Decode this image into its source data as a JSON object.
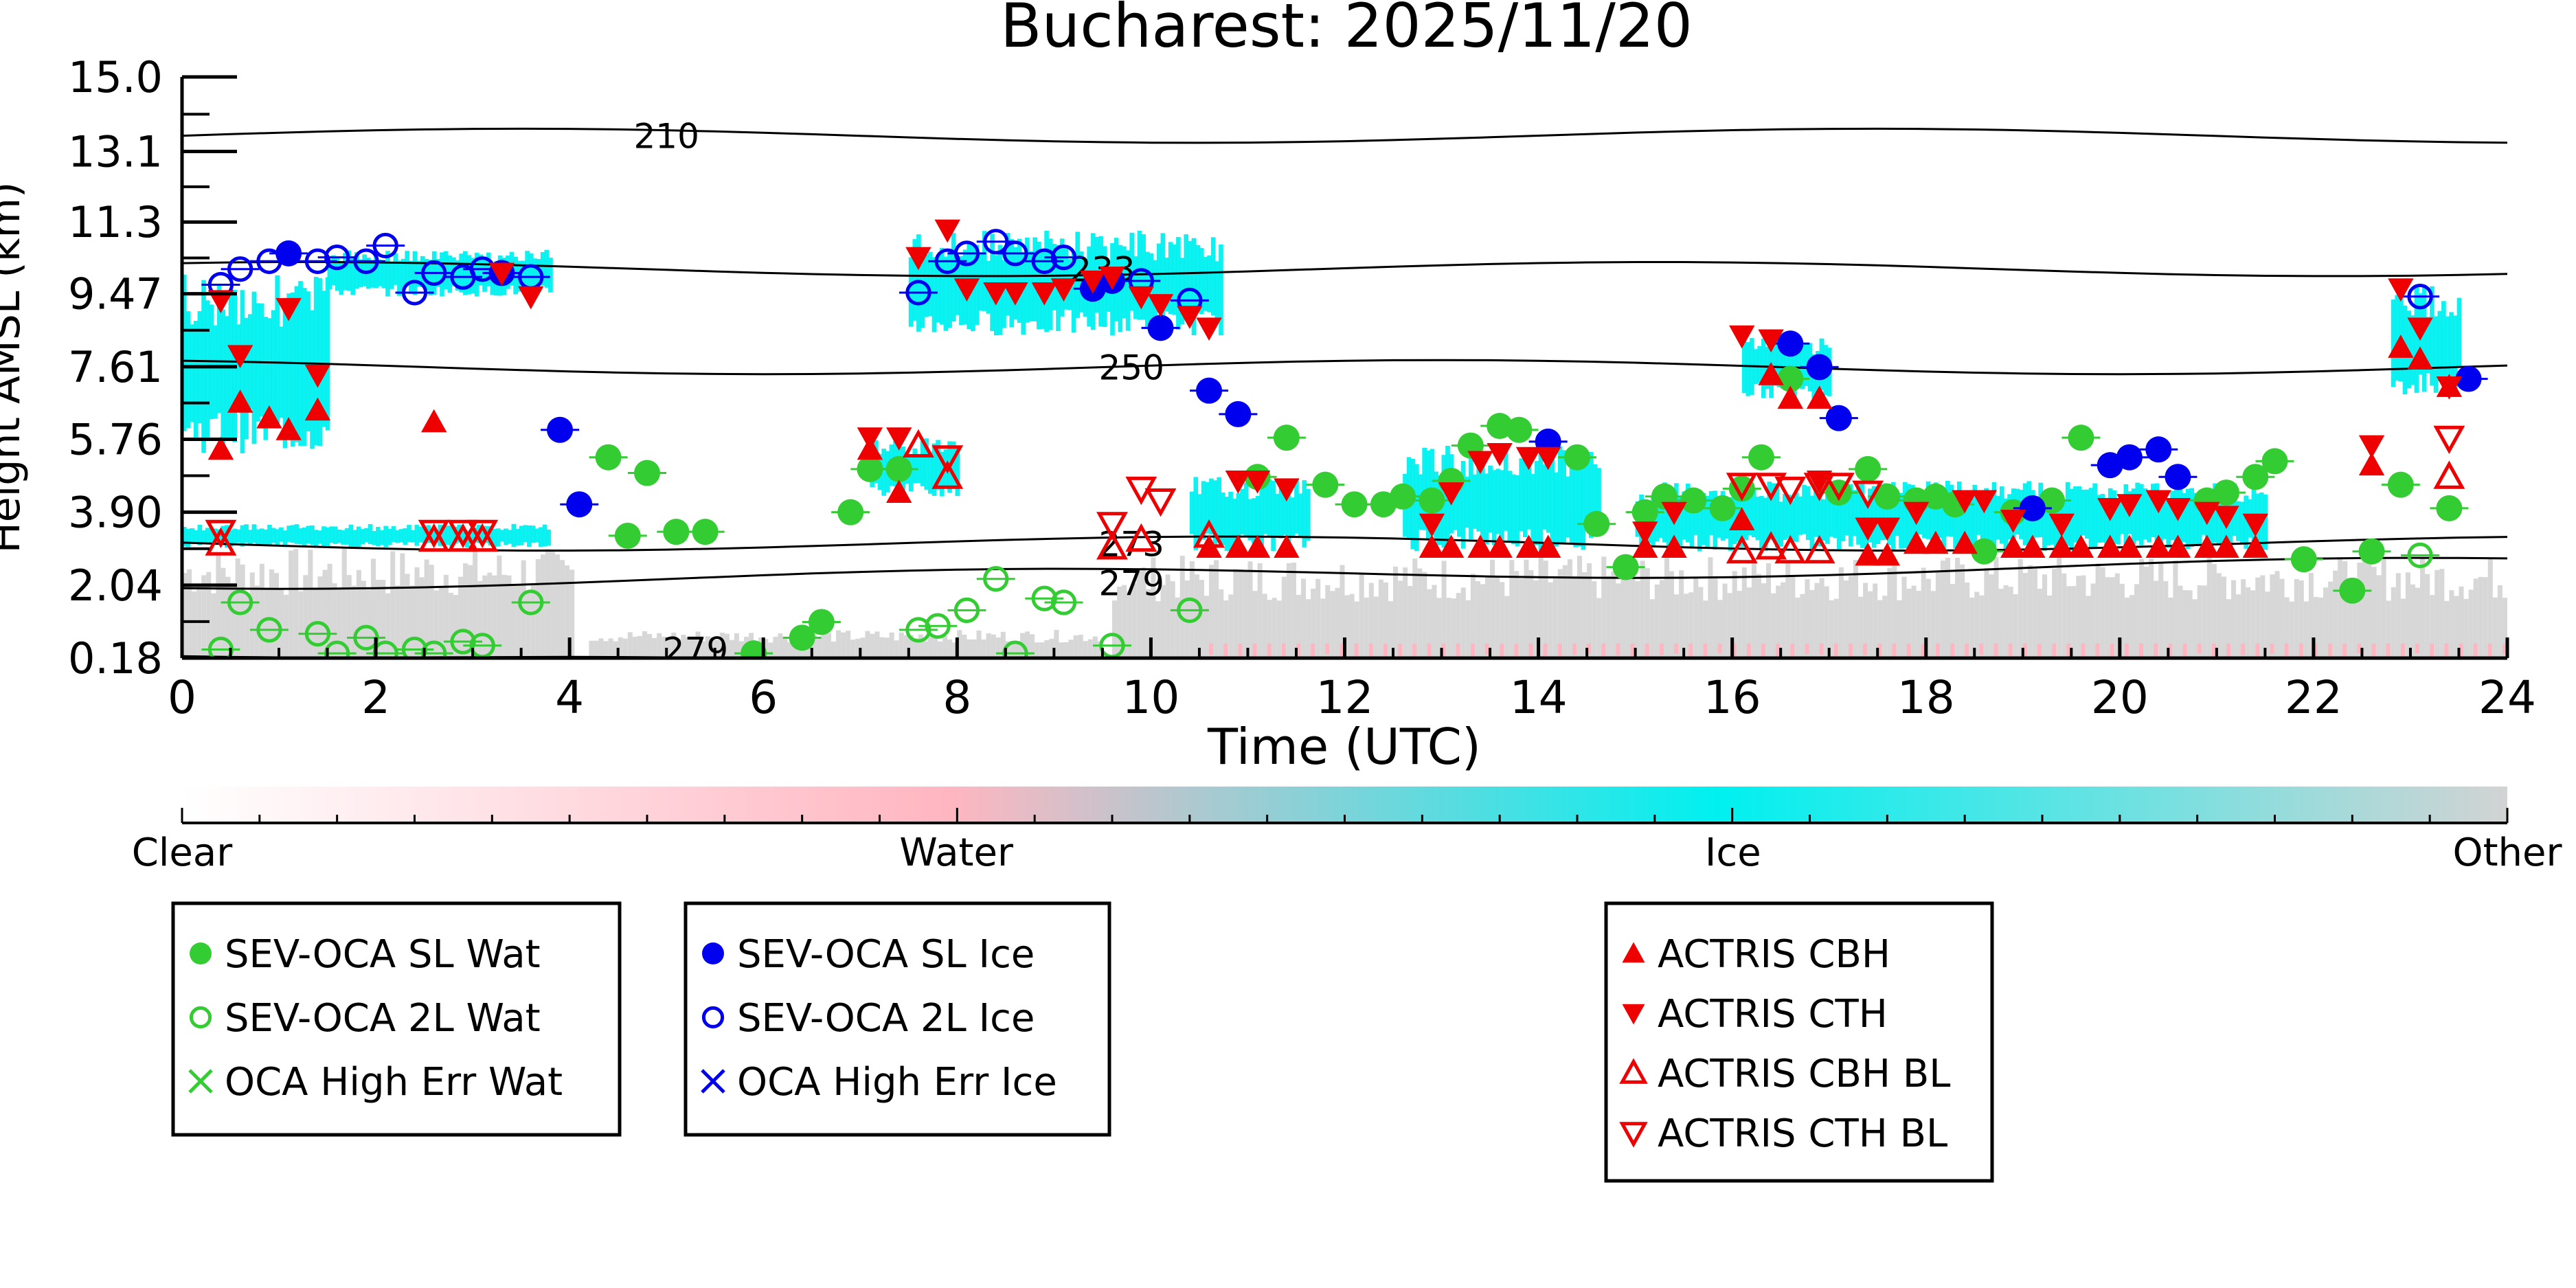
{
  "chart_data": {
    "type": "scatter",
    "title": "Bucharest: 2025/11/20",
    "xlabel": "Time (UTC)",
    "ylabel": "Height AMSL (km)",
    "xlim": [
      0,
      24
    ],
    "ylim": [
      0.18,
      15.0
    ],
    "x_ticks": [
      "0",
      "2",
      "4",
      "6",
      "8",
      "10",
      "12",
      "14",
      "16",
      "18",
      "20",
      "22",
      "24"
    ],
    "y_ticks": [
      "0.18",
      "2.04",
      "3.90",
      "5.76",
      "7.61",
      "9.47",
      "11.3",
      "13.1",
      "15.0"
    ],
    "grid": false,
    "colorbar": {
      "labels": [
        "Clear",
        "Water",
        "Ice",
        "Other"
      ],
      "colors": [
        "#ffffff",
        "#ffb6c1",
        "#00f0f0",
        "#d3d3d3"
      ]
    },
    "contours": [
      {
        "label": "210",
        "level_km": 13.5
      },
      {
        "label": "233",
        "level_km": 10.1
      },
      {
        "label": "250",
        "level_km": 7.6
      },
      {
        "label": "273",
        "level_km": 3.1
      },
      {
        "label": "279",
        "level_km": 2.1
      },
      {
        "label": "279",
        "level_km": 0.4
      }
    ],
    "legend_groups": [
      {
        "entries": [
          {
            "label": "SEV-OCA SL Wat",
            "marker": "filled-circle",
            "color": "#33cc33"
          },
          {
            "label": "SEV-OCA 2L Wat",
            "marker": "open-circle",
            "color": "#33cc33"
          },
          {
            "label": "OCA High Err Wat",
            "marker": "x",
            "color": "#33cc33"
          }
        ]
      },
      {
        "entries": [
          {
            "label": "SEV-OCA SL Ice",
            "marker": "filled-circle",
            "color": "#0000ee"
          },
          {
            "label": "SEV-OCA 2L Ice",
            "marker": "open-circle",
            "color": "#0000ee"
          },
          {
            "label": "OCA High Err Ice",
            "marker": "x",
            "color": "#0000ee"
          }
        ]
      },
      {
        "entries": [
          {
            "label": "ACTRIS CBH",
            "marker": "triangle-up",
            "color": "#ee0000"
          },
          {
            "label": "ACTRIS CTH",
            "marker": "triangle-down",
            "color": "#ee0000"
          },
          {
            "label": "ACTRIS CBH BL",
            "marker": "open-triangle-up",
            "color": "#ee0000"
          },
          {
            "label": "ACTRIS CTH BL",
            "marker": "open-triangle-down",
            "color": "#ee0000"
          }
        ]
      }
    ],
    "series": [
      {
        "name": "SEV-OCA SL Wat",
        "points": [
          [
            4.4,
            5.3
          ],
          [
            4.8,
            4.9
          ],
          [
            4.6,
            3.3
          ],
          [
            5.1,
            3.4
          ],
          [
            5.4,
            3.4
          ],
          [
            5.9,
            0.3
          ],
          [
            6.4,
            0.7
          ],
          [
            6.6,
            1.1
          ],
          [
            6.9,
            3.9
          ],
          [
            7.1,
            5.0
          ],
          [
            7.4,
            5.0
          ],
          [
            11.1,
            4.8
          ],
          [
            11.4,
            5.8
          ],
          [
            11.8,
            4.6
          ],
          [
            12.1,
            4.1
          ],
          [
            12.4,
            4.1
          ],
          [
            12.6,
            4.3
          ],
          [
            12.9,
            4.2
          ],
          [
            13.1,
            4.7
          ],
          [
            13.3,
            5.6
          ],
          [
            13.6,
            6.1
          ],
          [
            13.8,
            6.0
          ],
          [
            14.1,
            5.7
          ],
          [
            14.4,
            5.3
          ],
          [
            14.6,
            3.6
          ],
          [
            14.9,
            2.5
          ],
          [
            15.1,
            3.9
          ],
          [
            15.3,
            4.3
          ],
          [
            15.6,
            4.2
          ],
          [
            15.9,
            4.0
          ],
          [
            16.1,
            4.5
          ],
          [
            16.3,
            5.3
          ],
          [
            16.6,
            7.3
          ],
          [
            17.1,
            4.4
          ],
          [
            17.4,
            5.0
          ],
          [
            17.6,
            4.3
          ],
          [
            17.9,
            4.2
          ],
          [
            18.1,
            4.3
          ],
          [
            18.3,
            4.1
          ],
          [
            18.6,
            2.9
          ],
          [
            18.9,
            3.9
          ],
          [
            19.3,
            4.2
          ],
          [
            19.6,
            5.8
          ],
          [
            20.9,
            4.2
          ],
          [
            21.1,
            4.4
          ],
          [
            21.4,
            4.8
          ],
          [
            21.6,
            5.2
          ],
          [
            21.9,
            2.7
          ],
          [
            22.4,
            1.9
          ],
          [
            22.6,
            2.9
          ],
          [
            22.9,
            4.6
          ],
          [
            23.4,
            4.0
          ]
        ]
      },
      {
        "name": "SEV-OCA 2L Wat",
        "points": [
          [
            0.4,
            0.4
          ],
          [
            0.6,
            1.6
          ],
          [
            0.9,
            0.9
          ],
          [
            1.4,
            0.8
          ],
          [
            1.6,
            0.3
          ],
          [
            1.9,
            0.7
          ],
          [
            2.1,
            0.3
          ],
          [
            2.4,
            0.4
          ],
          [
            2.6,
            0.3
          ],
          [
            2.9,
            0.6
          ],
          [
            3.1,
            0.5
          ],
          [
            3.6,
            1.6
          ],
          [
            7.6,
            0.9
          ],
          [
            7.8,
            1.0
          ],
          [
            8.1,
            1.4
          ],
          [
            8.4,
            2.2
          ],
          [
            8.6,
            0.3
          ],
          [
            8.9,
            1.7
          ],
          [
            9.1,
            1.6
          ],
          [
            9.6,
            0.5
          ],
          [
            10.4,
            1.4
          ],
          [
            23.1,
            2.8
          ]
        ]
      },
      {
        "name": "SEV-OCA SL Ice",
        "points": [
          [
            1.1,
            10.5
          ],
          [
            3.3,
            10.0
          ],
          [
            3.9,
            6.0
          ],
          [
            4.1,
            4.1
          ],
          [
            9.4,
            9.6
          ],
          [
            9.6,
            9.8
          ],
          [
            10.1,
            8.6
          ],
          [
            10.6,
            7.0
          ],
          [
            10.9,
            6.4
          ],
          [
            14.1,
            5.7
          ],
          [
            16.6,
            8.2
          ],
          [
            16.9,
            7.6
          ],
          [
            17.1,
            6.3
          ],
          [
            19.1,
            4.0
          ],
          [
            19.9,
            5.1
          ],
          [
            20.1,
            5.3
          ],
          [
            20.4,
            5.5
          ],
          [
            20.6,
            4.8
          ],
          [
            23.6,
            7.3
          ]
        ]
      },
      {
        "name": "SEV-OCA 2L Ice",
        "points": [
          [
            0.4,
            9.7
          ],
          [
            0.6,
            10.1
          ],
          [
            0.9,
            10.3
          ],
          [
            1.4,
            10.3
          ],
          [
            1.6,
            10.4
          ],
          [
            1.9,
            10.3
          ],
          [
            2.1,
            10.7
          ],
          [
            2.4,
            9.5
          ],
          [
            2.6,
            10.0
          ],
          [
            2.9,
            9.9
          ],
          [
            3.1,
            10.1
          ],
          [
            3.6,
            9.9
          ],
          [
            7.6,
            9.5
          ],
          [
            7.9,
            10.3
          ],
          [
            8.1,
            10.5
          ],
          [
            8.4,
            10.8
          ],
          [
            8.6,
            10.5
          ],
          [
            8.9,
            10.3
          ],
          [
            9.1,
            10.4
          ],
          [
            9.9,
            9.8
          ],
          [
            10.4,
            9.3
          ],
          [
            23.1,
            9.4
          ]
        ]
      },
      {
        "name": "ACTRIS CBH",
        "points": [
          [
            0.4,
            5.5
          ],
          [
            0.6,
            6.7
          ],
          [
            0.9,
            6.3
          ],
          [
            1.1,
            6.0
          ],
          [
            1.4,
            6.5
          ],
          [
            2.6,
            6.2
          ],
          [
            7.1,
            5.5
          ],
          [
            7.4,
            4.4
          ],
          [
            10.6,
            3.0
          ],
          [
            10.9,
            3.0
          ],
          [
            11.1,
            3.0
          ],
          [
            11.4,
            3.0
          ],
          [
            12.9,
            3.0
          ],
          [
            13.1,
            3.0
          ],
          [
            13.4,
            3.0
          ],
          [
            13.6,
            3.0
          ],
          [
            13.9,
            3.0
          ],
          [
            14.1,
            3.0
          ],
          [
            15.1,
            3.0
          ],
          [
            15.4,
            3.0
          ],
          [
            16.1,
            3.7
          ],
          [
            16.4,
            7.4
          ],
          [
            16.6,
            6.8
          ],
          [
            16.9,
            6.8
          ],
          [
            17.4,
            2.8
          ],
          [
            17.6,
            2.8
          ],
          [
            17.9,
            3.1
          ],
          [
            18.1,
            3.1
          ],
          [
            18.4,
            3.1
          ],
          [
            18.9,
            3.0
          ],
          [
            19.1,
            3.0
          ],
          [
            19.4,
            3.0
          ],
          [
            19.6,
            3.0
          ],
          [
            19.9,
            3.0
          ],
          [
            20.1,
            3.0
          ],
          [
            20.4,
            3.0
          ],
          [
            20.6,
            3.0
          ],
          [
            20.9,
            3.0
          ],
          [
            21.1,
            3.0
          ],
          [
            21.4,
            3.0
          ],
          [
            22.6,
            5.1
          ],
          [
            22.9,
            8.1
          ],
          [
            23.1,
            7.8
          ],
          [
            23.4,
            7.1
          ]
        ]
      },
      {
        "name": "ACTRIS CTH",
        "points": [
          [
            0.4,
            9.3
          ],
          [
            0.6,
            7.9
          ],
          [
            1.1,
            9.1
          ],
          [
            1.4,
            7.4
          ],
          [
            3.3,
            10.0
          ],
          [
            3.6,
            9.4
          ],
          [
            7.1,
            5.8
          ],
          [
            7.4,
            5.8
          ],
          [
            7.6,
            10.4
          ],
          [
            7.9,
            11.1
          ],
          [
            8.1,
            9.6
          ],
          [
            8.4,
            9.5
          ],
          [
            8.6,
            9.5
          ],
          [
            8.9,
            9.5
          ],
          [
            9.1,
            9.6
          ],
          [
            9.4,
            9.8
          ],
          [
            9.6,
            9.9
          ],
          [
            9.9,
            9.4
          ],
          [
            10.1,
            9.2
          ],
          [
            10.4,
            8.9
          ],
          [
            10.6,
            8.6
          ],
          [
            10.9,
            4.7
          ],
          [
            11.1,
            4.7
          ],
          [
            11.4,
            4.5
          ],
          [
            12.9,
            3.6
          ],
          [
            13.1,
            4.4
          ],
          [
            13.4,
            5.2
          ],
          [
            13.6,
            5.4
          ],
          [
            13.9,
            5.3
          ],
          [
            14.1,
            5.3
          ],
          [
            15.1,
            3.4
          ],
          [
            15.4,
            3.9
          ],
          [
            16.1,
            8.4
          ],
          [
            16.4,
            8.3
          ],
          [
            16.9,
            4.7
          ],
          [
            17.4,
            3.5
          ],
          [
            17.6,
            3.5
          ],
          [
            17.9,
            3.9
          ],
          [
            18.4,
            4.2
          ],
          [
            18.6,
            4.2
          ],
          [
            18.9,
            3.7
          ],
          [
            19.4,
            3.6
          ],
          [
            19.9,
            4.0
          ],
          [
            20.1,
            4.1
          ],
          [
            20.4,
            4.2
          ],
          [
            20.6,
            4.0
          ],
          [
            20.9,
            3.9
          ],
          [
            21.1,
            3.8
          ],
          [
            21.4,
            3.6
          ],
          [
            22.6,
            5.6
          ],
          [
            22.9,
            9.6
          ],
          [
            23.1,
            8.6
          ],
          [
            23.4,
            7.1
          ]
        ]
      },
      {
        "name": "ACTRIS CBH BL",
        "points": [
          [
            0.4,
            3.1
          ],
          [
            2.6,
            3.2
          ],
          [
            2.9,
            3.2
          ],
          [
            3.1,
            3.2
          ],
          [
            7.6,
            5.6
          ],
          [
            7.9,
            4.8
          ],
          [
            9.6,
            3.0
          ],
          [
            9.9,
            3.2
          ],
          [
            10.6,
            3.3
          ],
          [
            16.1,
            2.9
          ],
          [
            16.4,
            3.0
          ],
          [
            16.6,
            2.9
          ],
          [
            16.9,
            2.9
          ],
          [
            23.4,
            4.8
          ]
        ]
      },
      {
        "name": "ACTRIS CTH BL",
        "points": [
          [
            0.4,
            3.4
          ],
          [
            2.6,
            3.4
          ],
          [
            2.9,
            3.4
          ],
          [
            3.1,
            3.4
          ],
          [
            7.9,
            5.3
          ],
          [
            9.6,
            3.6
          ],
          [
            9.9,
            4.5
          ],
          [
            10.1,
            4.2
          ],
          [
            16.1,
            4.6
          ],
          [
            16.4,
            4.6
          ],
          [
            16.6,
            4.5
          ],
          [
            16.9,
            4.6
          ],
          [
            17.1,
            4.6
          ],
          [
            17.4,
            4.4
          ],
          [
            23.4,
            5.8
          ]
        ]
      }
    ]
  }
}
